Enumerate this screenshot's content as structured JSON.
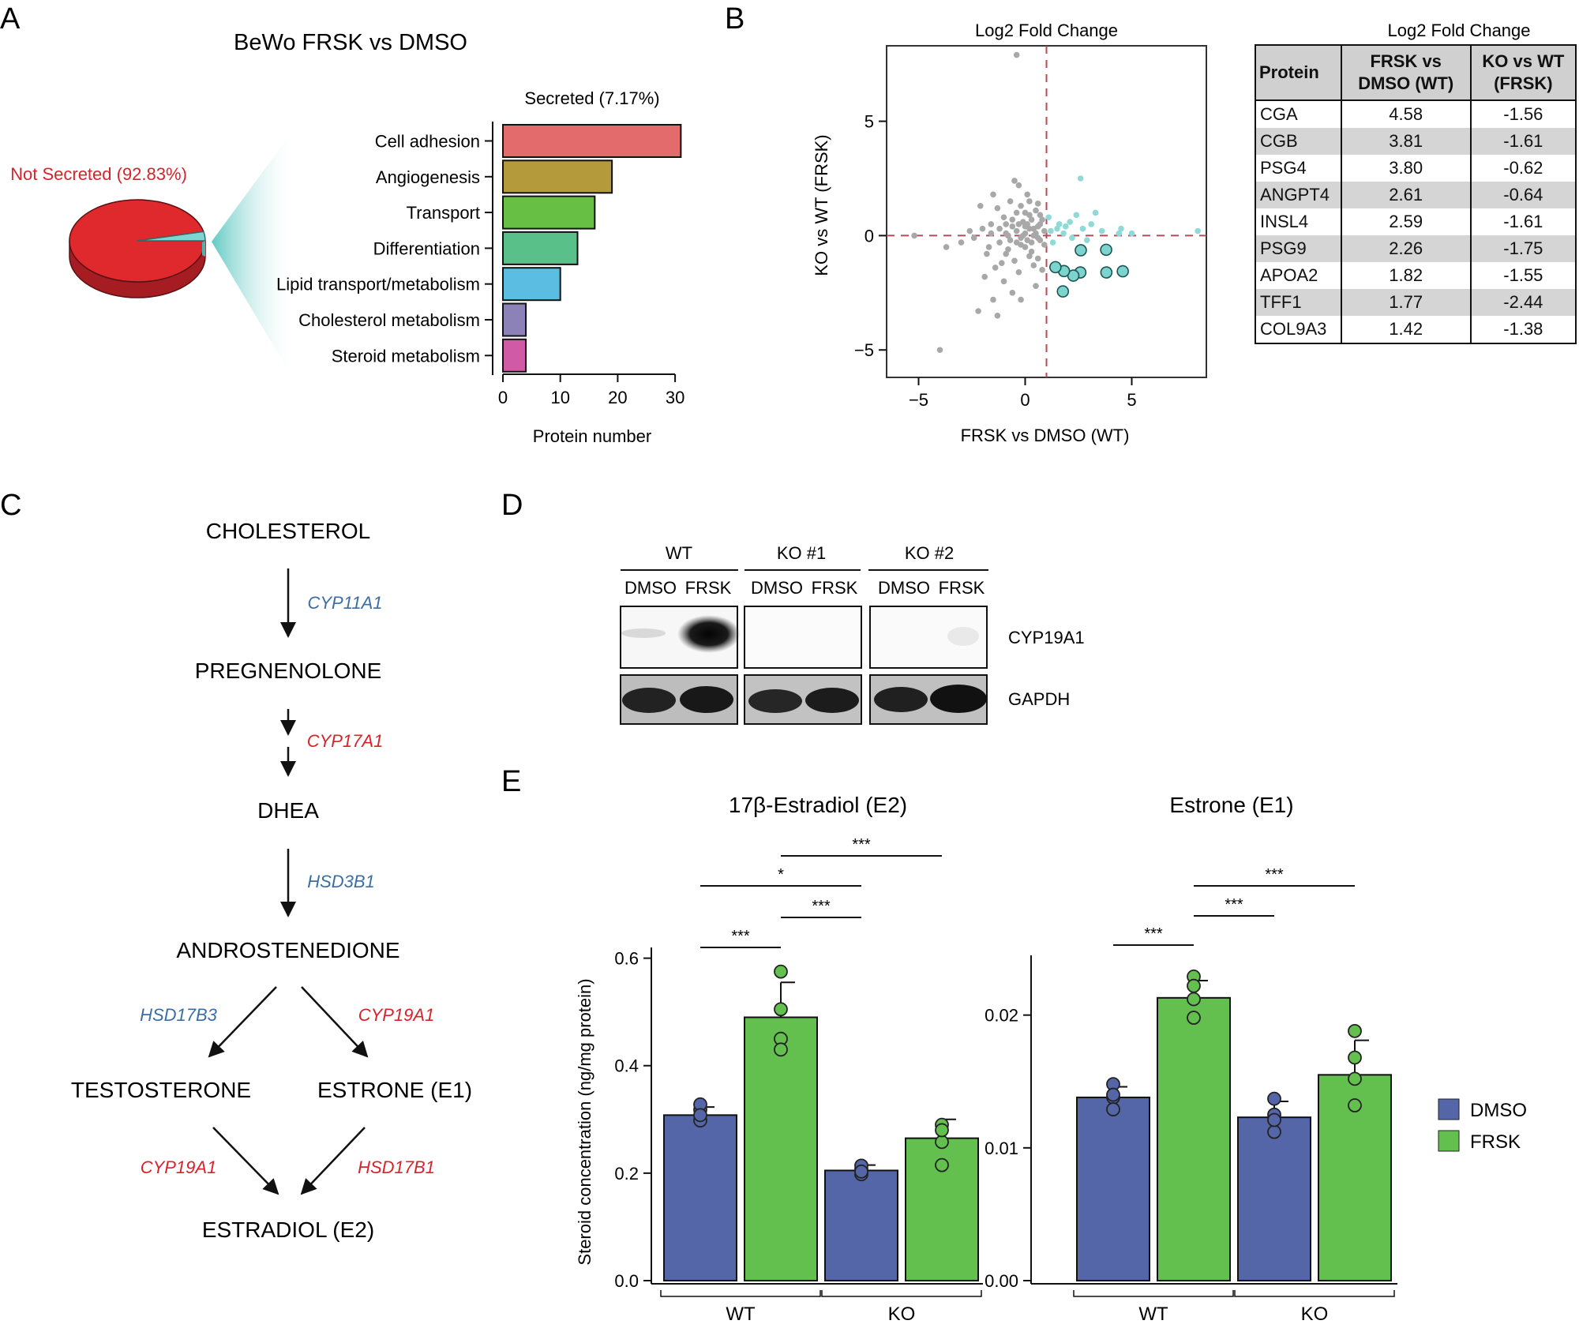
{
  "panels": {
    "a": "A",
    "b": "B",
    "c": "C",
    "d": "D",
    "e": "E"
  },
  "panelA": {
    "title": "BeWo FRSK vs DMSO",
    "pie_label": "Not Secreted (92.83%)",
    "bar_title": "Secreted (7.17%)"
  },
  "panelB": {
    "scatter_title": "Log2 Fold Change",
    "table_title": "Log2 Fold Change",
    "table_headers": [
      "Protein",
      "FRSK vs DMSO (WT)",
      "KO vs WT (FRSK)"
    ],
    "table_rows": [
      [
        "CGA",
        "4.58",
        "-1.56"
      ],
      [
        "CGB",
        "3.81",
        "-1.61"
      ],
      [
        "PSG4",
        "3.80",
        "-0.62"
      ],
      [
        "ANGPT4",
        "2.61",
        "-0.64"
      ],
      [
        "INSL4",
        "2.59",
        "-1.61"
      ],
      [
        "PSG9",
        "2.26",
        "-1.75"
      ],
      [
        "APOA2",
        "1.82",
        "-1.55"
      ],
      [
        "TFF1",
        "1.77",
        "-2.44"
      ],
      [
        "COL9A3",
        "1.42",
        "-1.38"
      ]
    ]
  },
  "panelC": {
    "compounds": {
      "cholesterol": "CHOLESTEROL",
      "pregnenolone": "PREGNENOLONE",
      "dhea": "DHEA",
      "androstenedione": "ANDROSTENEDIONE",
      "testosterone": "TESTOSTERONE",
      "estrone": "ESTRONE (E1)",
      "estradiol": "ESTRADIOL (E2)"
    },
    "enzymes": {
      "cyp11a1": "CYP11A1",
      "cyp17a1": "CYP17A1",
      "hsd3b1": "HSD3B1",
      "hsd17b3": "HSD17B3",
      "cyp19a1_top": "CYP19A1",
      "cyp19a1_bottom": "CYP19A1",
      "hsd17b1": "HSD17B1"
    },
    "colors": {
      "blue": "#3a6ea5",
      "red": "#d7242c"
    }
  },
  "panelD": {
    "groups": [
      "WT",
      "KO #1",
      "KO #2"
    ],
    "lanes": [
      "DMSO",
      "FRSK",
      "DMSO",
      "FRSK",
      "DMSO",
      "FRSK"
    ],
    "blots": [
      "CYP19A1",
      "GAPDH"
    ]
  },
  "panelE": {
    "legend": [
      "DMSO",
      "FRSK"
    ],
    "colors": {
      "DMSO": "#5566a8",
      "FRSK": "#63c04f"
    }
  },
  "chart_data": [
    {
      "id": "pie",
      "type": "pie",
      "categories": [
        "Not Secreted (92.83%)",
        "Secreted (7.17%)"
      ],
      "values": [
        92.83,
        7.17
      ],
      "colors": [
        "#e0292d",
        "#7dd6d2"
      ]
    },
    {
      "id": "bars",
      "type": "bar",
      "orientation": "horizontal",
      "title": "Secreted (7.17%)",
      "xlabel": "Protein number",
      "categories": [
        "Cell adhesion",
        "Angiogenesis",
        "Transport",
        "Differentiation",
        "Lipid transport/metabolism",
        "Cholesterol metabolism",
        "Steroid metabolism"
      ],
      "values": [
        31,
        19,
        16,
        13,
        10,
        4,
        4
      ],
      "colors": [
        "#e36b6b",
        "#b59a3c",
        "#67c043",
        "#59c08a",
        "#5bbde2",
        "#8c82b8",
        "#d05aa6"
      ],
      "xlim": [
        0,
        33
      ],
      "xticks": [
        0,
        10,
        20,
        30
      ]
    },
    {
      "id": "scatter",
      "type": "scatter",
      "title": "Log2 Fold Change",
      "xlabel": "FRSK vs DMSO (WT)",
      "ylabel": "KO vs WT (FRSK)",
      "xlim": [
        -6.5,
        8.5
      ],
      "ylim": [
        -6.2,
        8.3
      ],
      "xticks": [
        -5,
        0,
        5
      ],
      "yticks": [
        -5,
        0,
        5
      ],
      "xticklabels": [
        "−5",
        "0",
        "5"
      ],
      "yticklabels": [
        "−5",
        "0",
        "5"
      ],
      "ref_lines": {
        "x": 1,
        "y": 0
      },
      "highlight": [
        [
          4.58,
          -1.56
        ],
        [
          3.81,
          -1.61
        ],
        [
          3.8,
          -0.62
        ],
        [
          2.61,
          -0.64
        ],
        [
          2.59,
          -1.61
        ],
        [
          2.26,
          -1.75
        ],
        [
          1.82,
          -1.55
        ],
        [
          1.77,
          -2.44
        ],
        [
          1.42,
          -1.38
        ]
      ],
      "secondary": [
        [
          1.2,
          0.2
        ],
        [
          1.5,
          0.3
        ],
        [
          1.8,
          0.1
        ],
        [
          2.1,
          0.6
        ],
        [
          2.4,
          0.9
        ],
        [
          2.7,
          0.3
        ],
        [
          3.1,
          0.5
        ],
        [
          2.9,
          -0.2
        ],
        [
          1.3,
          -0.3
        ],
        [
          3.6,
          0.2
        ],
        [
          4.4,
          0.1
        ],
        [
          1.6,
          0.5
        ],
        [
          8.1,
          0.2
        ],
        [
          5.0,
          0.1
        ],
        [
          4.5,
          0.3
        ],
        [
          1.1,
          0.8
        ],
        [
          3.3,
          1.0
        ],
        [
          2.6,
          2.5
        ],
        [
          1.9,
          0.4
        ],
        [
          2.2,
          -0.1
        ]
      ],
      "background": [
        [
          -0.4,
          7.9
        ],
        [
          -4.0,
          -5.0
        ],
        [
          -3.7,
          -0.5
        ],
        [
          -2.4,
          -0.1
        ],
        [
          -2.0,
          0.3
        ],
        [
          -1.8,
          -0.8
        ],
        [
          -1.6,
          0.5
        ],
        [
          -1.4,
          -1.4
        ],
        [
          -1.3,
          1.2
        ],
        [
          -1.2,
          -0.3
        ],
        [
          -1.0,
          0.8
        ],
        [
          -1.0,
          -2.0
        ],
        [
          -0.9,
          0.1
        ],
        [
          -0.8,
          -0.6
        ],
        [
          -0.7,
          1.5
        ],
        [
          -0.6,
          0.4
        ],
        [
          -0.5,
          -1.1
        ],
        [
          -0.4,
          0.2
        ],
        [
          -0.3,
          2.2
        ],
        [
          -0.2,
          -0.4
        ],
        [
          -0.1,
          0.6
        ],
        [
          0.0,
          0.1
        ],
        [
          0.1,
          -0.2
        ],
        [
          0.2,
          0.9
        ],
        [
          0.3,
          -0.7
        ],
        [
          0.4,
          0.3
        ],
        [
          0.5,
          1.1
        ],
        [
          0.6,
          -0.1
        ],
        [
          0.7,
          0.5
        ],
        [
          0.8,
          -1.5
        ],
        [
          0.2,
          -0.9
        ],
        [
          -0.3,
          -1.6
        ],
        [
          -1.5,
          -2.8
        ],
        [
          -2.2,
          -3.3
        ],
        [
          0.1,
          1.8
        ],
        [
          -0.6,
          -2.5
        ],
        [
          0.5,
          -2.2
        ],
        [
          0.9,
          0.2
        ],
        [
          -0.2,
          1.3
        ],
        [
          -1.1,
          -1.2
        ],
        [
          -0.7,
          -0.2
        ],
        [
          0.3,
          0.7
        ],
        [
          0.6,
          0.4
        ],
        [
          -0.4,
          -0.3
        ],
        [
          -0.9,
          0.5
        ],
        [
          0.0,
          -0.5
        ],
        [
          0.2,
          0.3
        ],
        [
          -1.6,
          0.1
        ],
        [
          -2.6,
          0.2
        ],
        [
          -3.0,
          -0.3
        ],
        [
          -5.2,
          0.0
        ],
        [
          -0.5,
          2.4
        ],
        [
          0.0,
          1.0
        ],
        [
          0.7,
          0.9
        ],
        [
          0.4,
          -1.3
        ],
        [
          -1.9,
          -1.8
        ],
        [
          -1.3,
          -3.5
        ],
        [
          -0.2,
          -2.8
        ],
        [
          0.6,
          -1.0
        ],
        [
          -0.8,
          0.0
        ],
        [
          -0.1,
          0.0
        ],
        [
          0.1,
          0.5
        ],
        [
          0.3,
          -0.3
        ],
        [
          -0.6,
          0.7
        ],
        [
          -1.2,
          0.3
        ],
        [
          -0.3,
          0.5
        ],
        [
          0.8,
          0.7
        ],
        [
          0.5,
          0.1
        ],
        [
          -0.4,
          1.0
        ],
        [
          -1.7,
          -0.5
        ],
        [
          0.9,
          -0.4
        ],
        [
          -2.1,
          1.3
        ],
        [
          -1.5,
          1.8
        ],
        [
          0.2,
          1.5
        ],
        [
          -0.9,
          -0.8
        ],
        [
          0.4,
          0.0
        ],
        [
          0.6,
          1.4
        ],
        [
          -0.2,
          -0.1
        ],
        [
          0.0,
          0.4
        ],
        [
          0.7,
          -0.2
        ]
      ]
    },
    {
      "id": "e2",
      "type": "bar",
      "title": "17β-Estradiol (E2)",
      "ylabel": "Steroid concentration (ng/mg protein)",
      "categories": [
        "WT",
        "KO"
      ],
      "ylim": [
        0,
        0.62
      ],
      "yticks": [
        0.0,
        0.2,
        0.4,
        0.6
      ],
      "yticklabels": [
        "0.0",
        "0.2",
        "0.4",
        "0.6"
      ],
      "series": [
        {
          "name": "DMSO",
          "values": [
            0.308,
            0.205
          ],
          "errors": [
            0.015,
            0.01
          ],
          "points": [
            [
              0.298,
              0.318,
              0.328,
              0.308
            ],
            [
              0.198,
              0.208,
              0.214,
              0.203
            ]
          ]
        },
        {
          "name": "FRSK",
          "values": [
            0.49,
            0.265
          ],
          "errors": [
            0.065,
            0.035
          ],
          "points": [
            [
              0.575,
              0.45,
              0.43,
              0.505
            ],
            [
              0.29,
              0.258,
              0.215,
              0.28
            ]
          ]
        }
      ],
      "significance": [
        {
          "from": [
            0,
            0
          ],
          "to": [
            0,
            1
          ],
          "label": "***"
        },
        {
          "from": [
            0,
            0
          ],
          "to": [
            1,
            0
          ],
          "label": "*"
        },
        {
          "from": [
            0,
            1
          ],
          "to": [
            1,
            0
          ],
          "label": "***"
        },
        {
          "from": [
            0,
            1
          ],
          "to": [
            1,
            1
          ],
          "label": "***"
        }
      ]
    },
    {
      "id": "e1",
      "type": "bar",
      "title": "Estrone (E1)",
      "categories": [
        "WT",
        "KO"
      ],
      "ylim": [
        0,
        0.0245
      ],
      "yticks": [
        0.0,
        0.01,
        0.02
      ],
      "yticklabels": [
        "0.00",
        "0.01",
        "0.02"
      ],
      "series": [
        {
          "name": "DMSO",
          "values": [
            0.0138,
            0.0123
          ],
          "errors": [
            0.0008,
            0.0012
          ],
          "points": [
            [
              0.0148,
              0.0138,
              0.0129,
              0.014
            ],
            [
              0.0137,
              0.0125,
              0.0112,
              0.0121
            ]
          ]
        },
        {
          "name": "FRSK",
          "values": [
            0.0213,
            0.0155
          ],
          "errors": [
            0.0013,
            0.0026
          ],
          "points": [
            [
              0.0229,
              0.0222,
              0.0212,
              0.0198
            ],
            [
              0.0188,
              0.0168,
              0.0152,
              0.0132
            ]
          ]
        }
      ],
      "significance": [
        {
          "from": [
            0,
            0
          ],
          "to": [
            0,
            1
          ],
          "label": "***"
        },
        {
          "from": [
            0,
            1
          ],
          "to": [
            1,
            0
          ],
          "label": "***"
        },
        {
          "from": [
            0,
            1
          ],
          "to": [
            1,
            1
          ],
          "label": "***"
        }
      ]
    }
  ]
}
